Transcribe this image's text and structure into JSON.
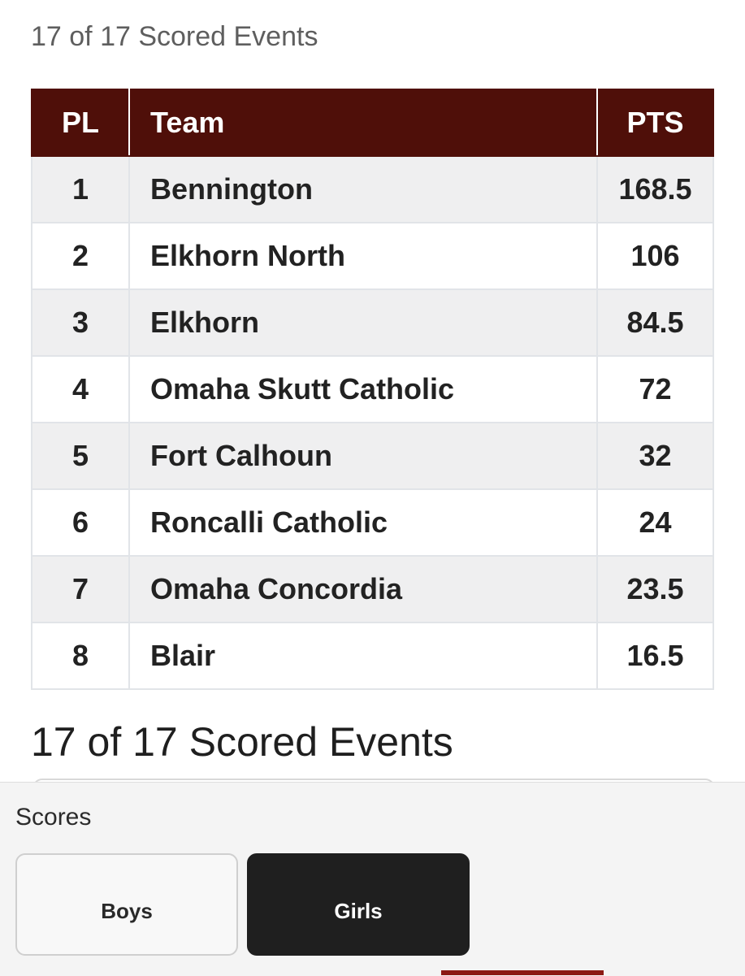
{
  "header": {
    "scored_events": "17 of 17 Scored Events"
  },
  "table": {
    "columns": [
      "PL",
      "Team",
      "PTS"
    ],
    "rows": [
      {
        "pl": "1",
        "team": "Bennington",
        "pts": "168.5"
      },
      {
        "pl": "2",
        "team": "Elkhorn North",
        "pts": "106"
      },
      {
        "pl": "3",
        "team": "Elkhorn",
        "pts": "84.5"
      },
      {
        "pl": "4",
        "team": "Omaha Skutt Catholic",
        "pts": "72"
      },
      {
        "pl": "5",
        "team": "Fort Calhoun",
        "pts": "32"
      },
      {
        "pl": "6",
        "team": "Roncalli Catholic",
        "pts": "24"
      },
      {
        "pl": "7",
        "team": "Omaha Concordia",
        "pts": "23.5"
      },
      {
        "pl": "8",
        "team": "Blair",
        "pts": "16.5"
      }
    ]
  },
  "next_section": {
    "scored_events": "17 of 17 Scored Events"
  },
  "bottom_panel": {
    "label": "Scores",
    "buttons": {
      "boys": "Boys",
      "girls": "Girls"
    },
    "selected": "Girls"
  },
  "colors": {
    "header_bg": "#4f0f09",
    "selected_button_bg": "#1f1f1f",
    "accent": "#8c1a14"
  }
}
